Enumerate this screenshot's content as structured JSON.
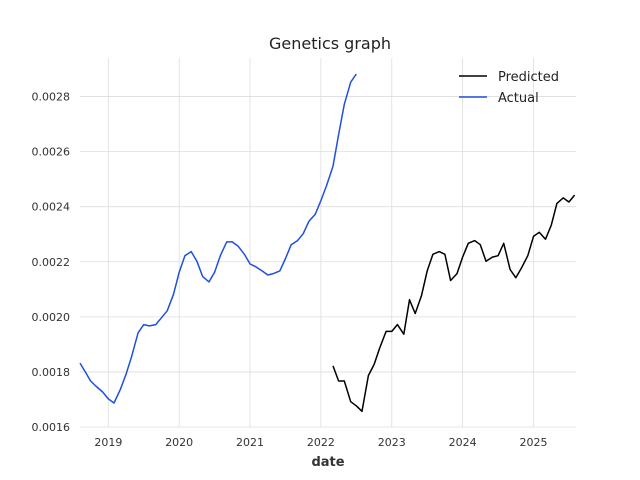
{
  "chart_data": {
    "type": "line",
    "title": "Genetics graph",
    "xlabel": "date",
    "ylabel": "",
    "xlim": [
      2018.6,
      2025.6
    ],
    "ylim": [
      0.0016,
      0.00294
    ],
    "x_ticks": [
      2019,
      2020,
      2021,
      2022,
      2023,
      2024,
      2025
    ],
    "x_tick_labels": [
      "2019",
      "2020",
      "2021",
      "2022",
      "2023",
      "2024",
      "2025"
    ],
    "y_ticks": [
      0.0016,
      0.0018,
      0.002,
      0.0022,
      0.0024,
      0.0026,
      0.0028
    ],
    "y_tick_labels": [
      "0.0016",
      "0.0018",
      "0.0020",
      "0.0022",
      "0.0024",
      "0.0026",
      "0.0028"
    ],
    "grid": true,
    "legend_position": "top-right",
    "series": [
      {
        "name": "Predicted",
        "color": "#000000",
        "x": [
          2022.17,
          2022.25,
          2022.33,
          2022.42,
          2022.5,
          2022.58,
          2022.67,
          2022.75,
          2022.83,
          2022.92,
          2023.0,
          2023.08,
          2023.17,
          2023.25,
          2023.33,
          2023.42,
          2023.5,
          2023.58,
          2023.67,
          2023.75,
          2023.83,
          2023.92,
          2024.0,
          2024.08,
          2024.17,
          2024.25,
          2024.33,
          2024.42,
          2024.5,
          2024.58,
          2024.67,
          2024.75,
          2024.83,
          2024.92,
          2025.0,
          2025.08,
          2025.17,
          2025.25,
          2025.33,
          2025.42,
          2025.5,
          2025.58
        ],
        "y": [
          0.001822,
          0.001767,
          0.001767,
          0.001692,
          0.001677,
          0.001657,
          0.001787,
          0.001827,
          0.001887,
          0.001947,
          0.001947,
          0.001972,
          0.001937,
          0.002062,
          0.002012,
          0.002077,
          0.002167,
          0.002227,
          0.002237,
          0.002227,
          0.002132,
          0.002157,
          0.002217,
          0.002267,
          0.002277,
          0.002262,
          0.002202,
          0.002217,
          0.002222,
          0.002267,
          0.002172,
          0.002142,
          0.002177,
          0.002222,
          0.002292,
          0.002307,
          0.002282,
          0.002332,
          0.002412,
          0.002432,
          0.002417,
          0.002442
        ]
      },
      {
        "name": "Actual",
        "color": "#1f4fe0",
        "x": [
          2018.6,
          2018.67,
          2018.75,
          2018.83,
          2018.92,
          2019.0,
          2019.08,
          2019.17,
          2019.25,
          2019.33,
          2019.42,
          2019.5,
          2019.58,
          2019.67,
          2019.75,
          2019.83,
          2019.92,
          2020.0,
          2020.08,
          2020.17,
          2020.25,
          2020.33,
          2020.42,
          2020.5,
          2020.58,
          2020.67,
          2020.75,
          2020.83,
          2020.92,
          2021.0,
          2021.08,
          2021.17,
          2021.25,
          2021.33,
          2021.42,
          2021.5,
          2021.58,
          2021.67,
          2021.75,
          2021.83,
          2021.92,
          2022.0,
          2022.08,
          2022.17,
          2022.25,
          2022.33,
          2022.42,
          2022.5
        ],
        "y": [
          0.001832,
          0.001802,
          0.001767,
          0.001747,
          0.001727,
          0.001702,
          0.001687,
          0.001737,
          0.001792,
          0.001857,
          0.001942,
          0.001972,
          0.001967,
          0.001972,
          0.001997,
          0.002022,
          0.002082,
          0.002162,
          0.002222,
          0.002237,
          0.002202,
          0.002147,
          0.002127,
          0.002162,
          0.002222,
          0.002272,
          0.002272,
          0.002257,
          0.002227,
          0.002192,
          0.002182,
          0.002167,
          0.002152,
          0.002157,
          0.002167,
          0.002212,
          0.002262,
          0.002277,
          0.002302,
          0.002347,
          0.002372,
          0.002422,
          0.002477,
          0.002547,
          0.002662,
          0.002772,
          0.002852,
          0.002882
        ]
      }
    ]
  }
}
